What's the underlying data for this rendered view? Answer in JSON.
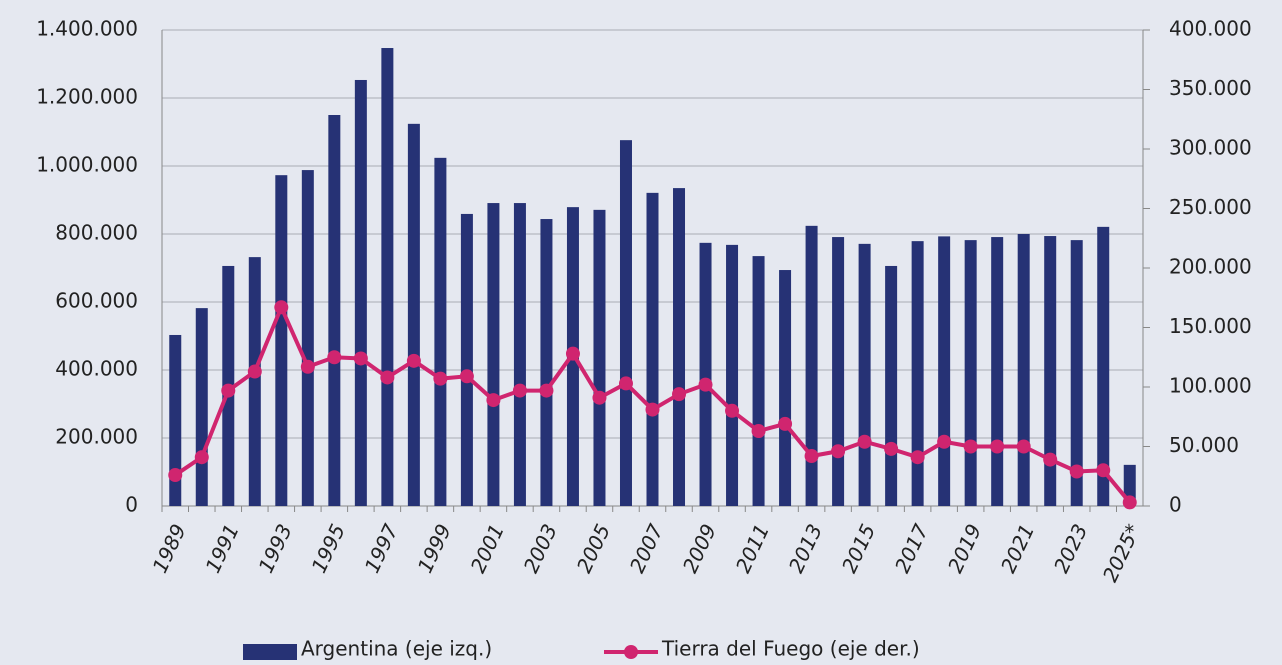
{
  "chart_data": {
    "type": "bar_line",
    "categories": [
      "1989",
      null,
      "1991",
      null,
      "1993",
      null,
      "1995",
      null,
      "1997",
      null,
      "1999",
      null,
      "2001",
      null,
      "2003",
      null,
      "2005",
      null,
      "2007",
      null,
      "2009",
      null,
      "2011",
      null,
      "2013",
      null,
      "2015",
      null,
      "2017",
      null,
      "2019",
      null,
      "2021",
      null,
      "2023",
      null,
      "2025*"
    ],
    "series": [
      {
        "name": "Argentina (eje izq.)",
        "type": "bar",
        "color": "#263275",
        "values": [
          503000,
          582000,
          706000,
          732000,
          973000,
          988000,
          1150000,
          1253000,
          1347000,
          1124000,
          1024000,
          859000,
          891000,
          891000,
          844000,
          879000,
          871000,
          1076000,
          921000,
          935000,
          774000,
          768000,
          735000,
          694000,
          824000,
          791000,
          771000,
          706000,
          779000,
          793000,
          782000,
          791000,
          800000,
          794000,
          782000,
          821000,
          121000
        ]
      },
      {
        "name": "Tierra del Fuego (eje der.)",
        "type": "line",
        "axis": "y2",
        "color": "#d0256f",
        "values": [
          26000,
          41000,
          97000,
          113000,
          167000,
          117000,
          125000,
          124000,
          108000,
          122000,
          107000,
          109000,
          89000,
          97000,
          97000,
          128000,
          91000,
          103000,
          81000,
          94000,
          102000,
          80000,
          63000,
          69000,
          42000,
          46000,
          54000,
          48000,
          41000,
          54000,
          50000,
          50000,
          50000,
          39000,
          29000,
          30000,
          3000
        ]
      }
    ],
    "ylim": [
      0,
      1400000
    ],
    "yticks": [
      0,
      {
        "value": 200000,
        "label": "200.000"
      },
      {
        "value": 400000,
        "label": "400.000"
      },
      {
        "value": 600000,
        "label": "600.000"
      },
      {
        "value": 800000,
        "label": "800.000"
      },
      {
        "value": 1000000,
        "label": "1.000.000"
      },
      {
        "value": 1200000,
        "label": "1.200.000"
      },
      {
        "value": 1400000,
        "label": "1.400.000"
      }
    ],
    "y2lim": [
      0,
      400000
    ],
    "y2ticks": [
      0,
      {
        "value": 50000,
        "label": "50.000"
      },
      {
        "value": 100000,
        "label": "100.000"
      },
      {
        "value": 150000,
        "label": "150.000"
      },
      {
        "value": 200000,
        "label": "200.000"
      },
      {
        "value": 250000,
        "label": "250.000"
      },
      {
        "value": 300000,
        "label": "300.000"
      },
      {
        "value": 350000,
        "label": "350.000"
      },
      {
        "value": 400000,
        "label": "400.000"
      }
    ],
    "grid": true,
    "legend": "bottom"
  }
}
